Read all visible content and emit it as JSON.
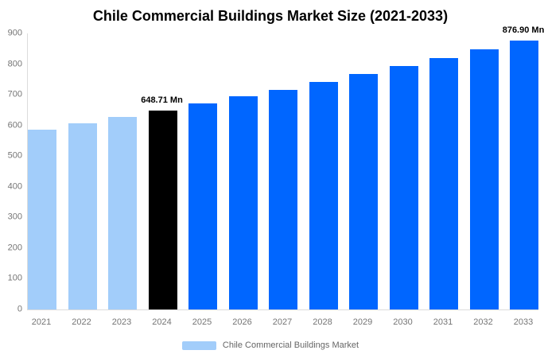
{
  "title": "Chile Commercial Buildings Market Size (2021-2033)",
  "legend": {
    "label": "Chile Commercial Buildings Market",
    "swatch_color": "#A2CDFA"
  },
  "chart_data": {
    "type": "bar",
    "title": "Chile Commercial Buildings Market Size (2021-2033)",
    "xlabel": "",
    "ylabel": "",
    "categories": [
      "2021",
      "2022",
      "2023",
      "2024",
      "2025",
      "2026",
      "2027",
      "2028",
      "2029",
      "2030",
      "2031",
      "2032",
      "2033"
    ],
    "values": [
      586,
      606,
      627,
      648.71,
      671,
      694,
      717,
      741,
      767,
      793,
      820,
      848,
      876.9
    ],
    "point_colors": [
      "#A2CDFA",
      "#A2CDFA",
      "#A2CDFA",
      "#000000",
      "#0066FF",
      "#0066FF",
      "#0066FF",
      "#0066FF",
      "#0066FF",
      "#0066FF",
      "#0066FF",
      "#0066FF",
      "#0066FF"
    ],
    "ylim": [
      0,
      900
    ],
    "yticks": [
      0,
      100,
      200,
      300,
      400,
      500,
      600,
      700,
      800,
      900
    ],
    "grid": false,
    "legend_position": "bottom",
    "annotations": [
      {
        "index": 3,
        "text": "648.71 Mn"
      },
      {
        "index": 12,
        "text": "876.90 Mn"
      }
    ],
    "colors": {
      "historical_bar": "#A2CDFA",
      "highlight_bar": "#000000",
      "forecast_bar": "#0066FF",
      "axis_line": "#DCDCDC",
      "tick_text": "#757575",
      "legend_text": "#666666",
      "title_text": "#000000",
      "background": "#FFFFFF"
    }
  }
}
